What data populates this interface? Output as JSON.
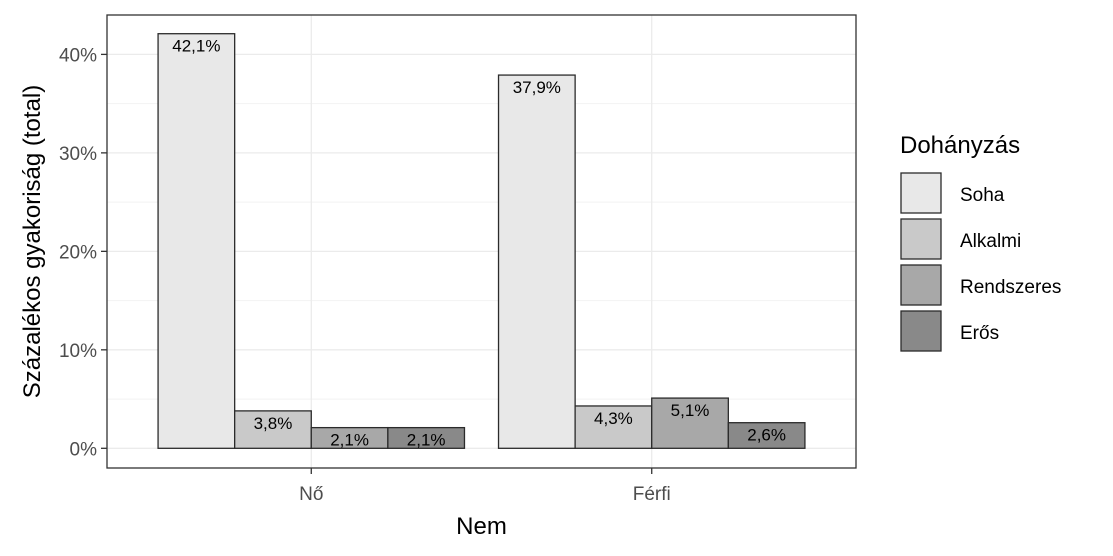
{
  "chart_data": {
    "type": "bar",
    "xlabel": "Nem",
    "ylabel": "Százalékos gyakoriság (total)",
    "categories": [
      "Nő",
      "Férfi"
    ],
    "y_ticks": [
      0,
      10,
      20,
      30,
      40
    ],
    "y_tick_labels": [
      "0%",
      "10%",
      "20%",
      "30%",
      "40%"
    ],
    "ylim": [
      -2,
      44
    ],
    "grid": true,
    "legend": {
      "title": "Dohányzás",
      "position": "right"
    },
    "series": [
      {
        "name": "Soha",
        "color": "#e8e8e8",
        "values": [
          42.1,
          37.9
        ],
        "labels": [
          "42,1%",
          "37,9%"
        ]
      },
      {
        "name": "Alkalmi",
        "color": "#c9c9c9",
        "values": [
          3.8,
          4.3
        ],
        "labels": [
          "3,8%",
          "4,3%"
        ]
      },
      {
        "name": "Rendszeres",
        "color": "#a8a8a8",
        "values": [
          2.1,
          5.1
        ],
        "labels": [
          "2,1%",
          "5,1%"
        ]
      },
      {
        "name": "Erős",
        "color": "#898989",
        "values": [
          2.1,
          2.6
        ],
        "labels": [
          "2,1%",
          "2,6%"
        ]
      }
    ]
  }
}
